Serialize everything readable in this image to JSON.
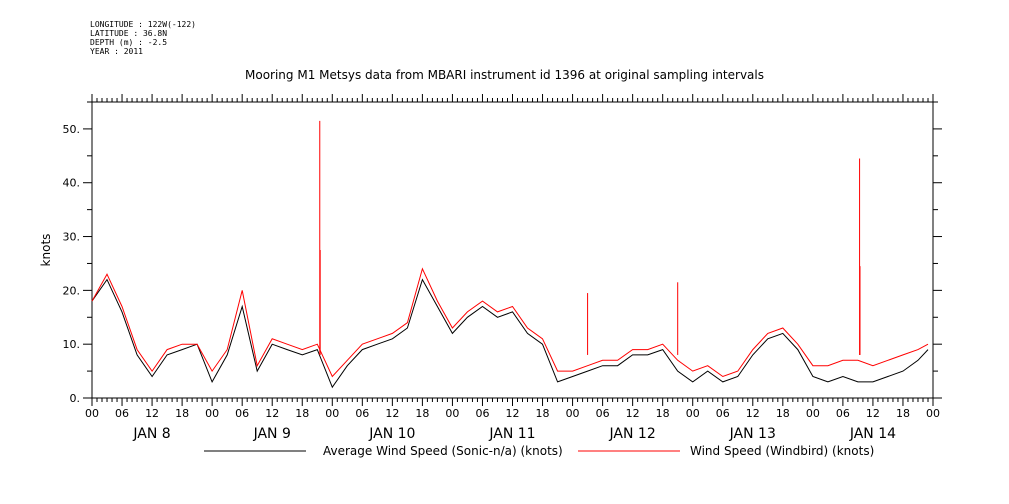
{
  "header": {
    "meta_lines": [
      "LONGITUDE : 122W(-122)",
      "LATITUDE : 36.8N",
      "DEPTH (m) : -2.5",
      "YEAR : 2011"
    ],
    "title": "Mooring M1 Metsys data from MBARI instrument id 1396 at original sampling intervals"
  },
  "chart_data": {
    "type": "line",
    "title": "Mooring M1 Metsys data from MBARI instrument id 1396 at original sampling intervals",
    "ylabel": "knots",
    "xlabel": "",
    "ylim": [
      0,
      55
    ],
    "yticks": [
      0,
      10,
      20,
      30,
      40,
      50
    ],
    "ytick_labels": [
      "0.",
      "10.",
      "20.",
      "30.",
      "40.",
      "50."
    ],
    "xlim": [
      "2011-01-08T00:00",
      "2011-01-15T00:00"
    ],
    "xtick_hours": [
      "00",
      "06",
      "12",
      "18"
    ],
    "day_labels": [
      "JAN  8",
      "JAN  9",
      "JAN 10",
      "JAN 11",
      "JAN 12",
      "JAN 13",
      "JAN 14"
    ],
    "grid": false,
    "legend_position": "bottom",
    "series": [
      {
        "name": "Average Wind Speed (Sonic-n/a) (knots)",
        "color": "#000000",
        "x": [
          "2011-01-08T00:00",
          "2011-01-08T03:00",
          "2011-01-08T06:00",
          "2011-01-08T09:00",
          "2011-01-08T12:00",
          "2011-01-08T15:00",
          "2011-01-08T18:00",
          "2011-01-08T21:00",
          "2011-01-09T00:00",
          "2011-01-09T03:00",
          "2011-01-09T06:00",
          "2011-01-09T09:00",
          "2011-01-09T12:00",
          "2011-01-09T15:00",
          "2011-01-09T18:00",
          "2011-01-09T21:00",
          "2011-01-10T00:00",
          "2011-01-10T03:00",
          "2011-01-10T06:00",
          "2011-01-10T09:00",
          "2011-01-10T12:00",
          "2011-01-10T15:00",
          "2011-01-10T18:00",
          "2011-01-10T21:00",
          "2011-01-11T00:00",
          "2011-01-11T03:00",
          "2011-01-11T06:00",
          "2011-01-11T09:00",
          "2011-01-11T12:00",
          "2011-01-11T15:00",
          "2011-01-11T18:00",
          "2011-01-11T21:00",
          "2011-01-12T00:00",
          "2011-01-12T03:00",
          "2011-01-12T06:00",
          "2011-01-12T09:00",
          "2011-01-12T12:00",
          "2011-01-12T15:00",
          "2011-01-12T18:00",
          "2011-01-12T21:00",
          "2011-01-13T00:00",
          "2011-01-13T03:00",
          "2011-01-13T06:00",
          "2011-01-13T09:00",
          "2011-01-13T12:00",
          "2011-01-13T15:00",
          "2011-01-13T18:00",
          "2011-01-13T21:00",
          "2011-01-14T00:00",
          "2011-01-14T03:00",
          "2011-01-14T06:00",
          "2011-01-14T09:00",
          "2011-01-14T12:00",
          "2011-01-14T15:00",
          "2011-01-14T18:00",
          "2011-01-14T21:00",
          "2011-01-14T23:00"
        ],
        "values": [
          18,
          22,
          16,
          8,
          4,
          8,
          9,
          10,
          3,
          8,
          17,
          5,
          10,
          9,
          8,
          9,
          2,
          6,
          9,
          10,
          11,
          13,
          22,
          17,
          12,
          15,
          17,
          15,
          16,
          12,
          10,
          3,
          4,
          5,
          6,
          6,
          8,
          8,
          9,
          5,
          3,
          5,
          3,
          4,
          8,
          11,
          12,
          9,
          4,
          3,
          4,
          3,
          3,
          4,
          5,
          7,
          9
        ]
      },
      {
        "name": "Wind Speed (Windbird) (knots)",
        "color": "#ff0000",
        "x": [
          "2011-01-08T00:00",
          "2011-01-08T03:00",
          "2011-01-08T06:00",
          "2011-01-08T09:00",
          "2011-01-08T12:00",
          "2011-01-08T15:00",
          "2011-01-08T18:00",
          "2011-01-08T21:00",
          "2011-01-09T00:00",
          "2011-01-09T03:00",
          "2011-01-09T06:00",
          "2011-01-09T09:00",
          "2011-01-09T12:00",
          "2011-01-09T15:00",
          "2011-01-09T18:00",
          "2011-01-09T21:00",
          "2011-01-10T00:00",
          "2011-01-10T03:00",
          "2011-01-10T06:00",
          "2011-01-10T09:00",
          "2011-01-10T12:00",
          "2011-01-10T15:00",
          "2011-01-10T18:00",
          "2011-01-10T21:00",
          "2011-01-11T00:00",
          "2011-01-11T03:00",
          "2011-01-11T06:00",
          "2011-01-11T09:00",
          "2011-01-11T12:00",
          "2011-01-11T15:00",
          "2011-01-11T18:00",
          "2011-01-11T21:00",
          "2011-01-12T00:00",
          "2011-01-12T03:00",
          "2011-01-12T06:00",
          "2011-01-12T09:00",
          "2011-01-12T12:00",
          "2011-01-12T15:00",
          "2011-01-12T18:00",
          "2011-01-12T21:00",
          "2011-01-13T00:00",
          "2011-01-13T03:00",
          "2011-01-13T06:00",
          "2011-01-13T09:00",
          "2011-01-13T12:00",
          "2011-01-13T15:00",
          "2011-01-13T18:00",
          "2011-01-13T21:00",
          "2011-01-14T00:00",
          "2011-01-14T03:00",
          "2011-01-14T06:00",
          "2011-01-14T09:00",
          "2011-01-14T12:00",
          "2011-01-14T15:00",
          "2011-01-14T18:00",
          "2011-01-14T21:00",
          "2011-01-14T23:00"
        ],
        "values": [
          18,
          23,
          17,
          9,
          5,
          9,
          10,
          10,
          5,
          9,
          20,
          6,
          11,
          10,
          9,
          10,
          4,
          7,
          10,
          11,
          12,
          14,
          24,
          18,
          13,
          16,
          18,
          16,
          17,
          13,
          11,
          5,
          5,
          6,
          7,
          7,
          9,
          9,
          10,
          7,
          5,
          6,
          4,
          5,
          9,
          12,
          13,
          10,
          6,
          6,
          7,
          7,
          6,
          7,
          8,
          9,
          10
        ]
      },
      {
        "name": "Wind Speed (Windbird) (knots) spikes",
        "color": "#ff0000",
        "x": [
          "2011-01-09T21:30",
          "2011-01-09T21:35",
          "2011-01-12T03:00",
          "2011-01-12T21:00",
          "2011-01-14T09:20",
          "2011-01-14T09:25"
        ],
        "values": [
          51.5,
          27.5,
          19.5,
          21.5,
          44.5,
          24.5
        ]
      }
    ]
  }
}
